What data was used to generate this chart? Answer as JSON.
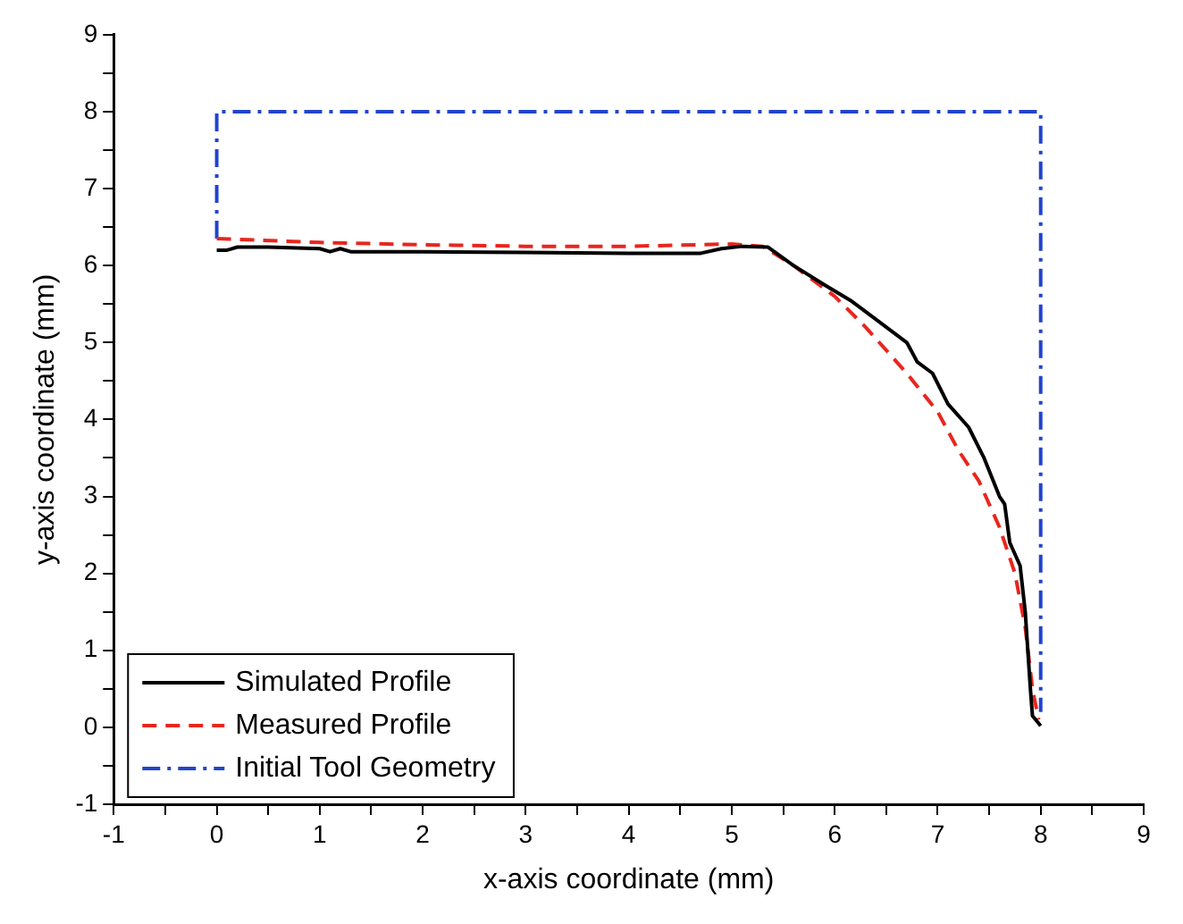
{
  "chart_data": {
    "type": "line",
    "xlabel": "x-axis coordinate (mm)",
    "ylabel": "y-axis coordinate (mm)",
    "xlim": [
      -1,
      9
    ],
    "ylim": [
      -1,
      9
    ],
    "xticks": [
      -1,
      {
        "value": -0.5,
        "label": null
      },
      0,
      {
        "value": 0.5,
        "label": null
      },
      1,
      {
        "value": 1.5,
        "label": null
      },
      2,
      {
        "value": 2.5,
        "label": null
      },
      3,
      {
        "value": 3.5,
        "label": null
      },
      4,
      {
        "value": 4.5,
        "label": null
      },
      5,
      {
        "value": 5.5,
        "label": null
      },
      6,
      {
        "value": 6.5,
        "label": null
      },
      7,
      {
        "value": 7.5,
        "label": null
      },
      8,
      {
        "value": 8.5,
        "label": null
      },
      9
    ],
    "yticks": [
      -1,
      {
        "value": -0.5,
        "label": null
      },
      0,
      {
        "value": 0.5,
        "label": null
      },
      1,
      {
        "value": 1.5,
        "label": null
      },
      2,
      {
        "value": 2.5,
        "label": null
      },
      3,
      {
        "value": 3.5,
        "label": null
      },
      4,
      {
        "value": 4.5,
        "label": null
      },
      5,
      {
        "value": 5.5,
        "label": null
      },
      6,
      {
        "value": 6.5,
        "label": null
      },
      7,
      {
        "value": 7.5,
        "label": null
      },
      8,
      {
        "value": 8.5,
        "label": null
      },
      9
    ],
    "grid": false,
    "legend": "bottom left",
    "marker": "none",
    "series": [
      {
        "name": "Simulated Profile",
        "color": "#000000",
        "line_style": "solid",
        "x": [
          0,
          0.1,
          0.2,
          0.5,
          1.0,
          1.1,
          1.2,
          1.3,
          2,
          3,
          4,
          4.7,
          4.9,
          5.1,
          5.35,
          5.6,
          5.9,
          6.15,
          6.2,
          6.4,
          6.7,
          6.8,
          6.95,
          7.1,
          7.3,
          7.45,
          7.6,
          7.65,
          7.7,
          7.8,
          7.85,
          7.9,
          7.92,
          8.0
        ],
        "values": [
          6.2,
          6.2,
          6.24,
          6.24,
          6.22,
          6.18,
          6.22,
          6.18,
          6.18,
          6.17,
          6.16,
          6.16,
          6.22,
          6.25,
          6.24,
          6.0,
          5.75,
          5.55,
          5.5,
          5.3,
          5.0,
          4.75,
          4.6,
          4.2,
          3.9,
          3.5,
          3.0,
          2.9,
          2.4,
          2.1,
          1.5,
          0.5,
          0.15,
          0.02
        ]
      },
      {
        "name": "Measured Profile",
        "color": "#e8261e",
        "line_style": "dashed",
        "x": [
          0,
          1,
          2,
          3,
          4,
          5,
          5.3,
          5.6,
          6,
          6.3,
          6.7,
          7.0,
          7.2,
          7.4,
          7.6,
          7.75,
          7.85,
          7.92,
          7.98
        ],
        "values": [
          6.35,
          6.3,
          6.27,
          6.25,
          6.25,
          6.28,
          6.25,
          6.0,
          5.6,
          5.2,
          4.6,
          4.1,
          3.6,
          3.2,
          2.6,
          2.0,
          1.3,
          0.5,
          0.1
        ]
      },
      {
        "name": "Initial Tool Geometry",
        "color": "#2244cc",
        "line_style": "dotted",
        "x": [
          0,
          0,
          8,
          8
        ],
        "values": [
          6.35,
          8,
          8,
          0.2
        ]
      }
    ]
  }
}
